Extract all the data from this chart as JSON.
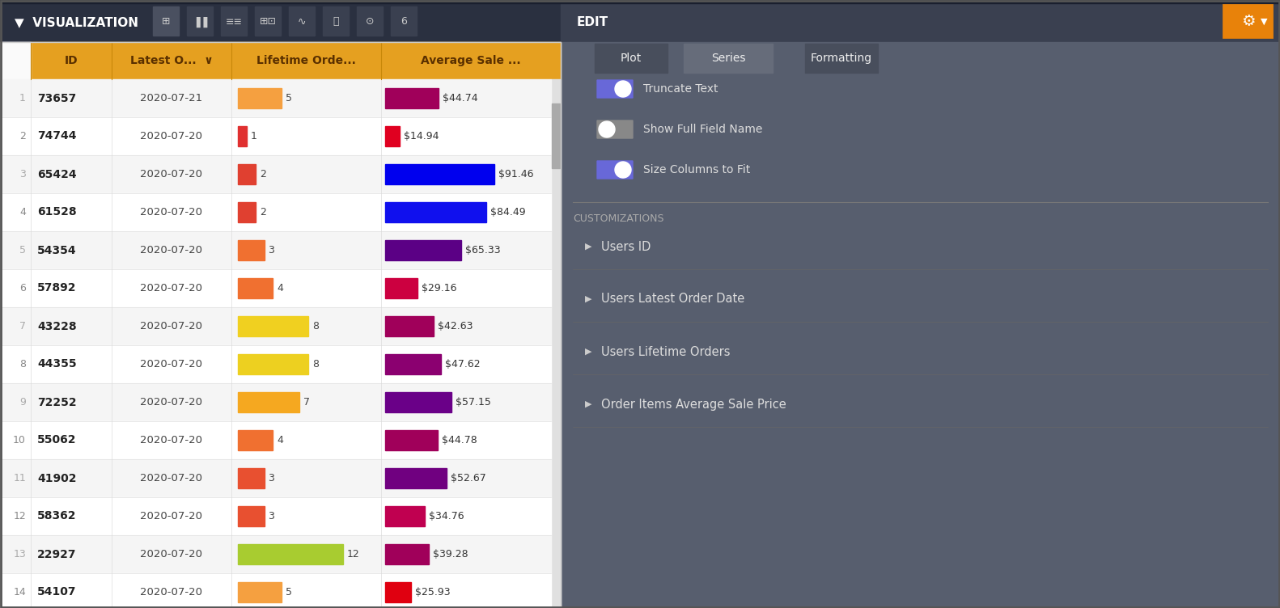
{
  "rows": [
    {
      "num": 1,
      "id": "73657",
      "date": "2020-07-21",
      "lifetime": 5,
      "lifetime_bar_color": "#F5A040",
      "avg_sale": 44.74,
      "avg_bar_color": "#A0005A",
      "avg_bar_width": 0.45
    },
    {
      "num": 2,
      "id": "74744",
      "date": "2020-07-20",
      "lifetime": 1,
      "lifetime_bar_color": "#E03030",
      "avg_sale": 14.94,
      "avg_bar_color": "#E00020",
      "avg_bar_width": 0.12
    },
    {
      "num": 3,
      "id": "65424",
      "date": "2020-07-20",
      "lifetime": 2,
      "lifetime_bar_color": "#E04030",
      "avg_sale": 91.46,
      "avg_bar_color": "#0000EE",
      "avg_bar_width": 0.92
    },
    {
      "num": 4,
      "id": "61528",
      "date": "2020-07-20",
      "lifetime": 2,
      "lifetime_bar_color": "#E04030",
      "avg_sale": 84.49,
      "avg_bar_color": "#1010EE",
      "avg_bar_width": 0.85
    },
    {
      "num": 5,
      "id": "54354",
      "date": "2020-07-20",
      "lifetime": 3,
      "lifetime_bar_color": "#F07030",
      "avg_sale": 65.33,
      "avg_bar_color": "#5B0085",
      "avg_bar_width": 0.64
    },
    {
      "num": 6,
      "id": "57892",
      "date": "2020-07-20",
      "lifetime": 4,
      "lifetime_bar_color": "#F07030",
      "avg_sale": 29.16,
      "avg_bar_color": "#CC0040",
      "avg_bar_width": 0.27
    },
    {
      "num": 7,
      "id": "43228",
      "date": "2020-07-20",
      "lifetime": 8,
      "lifetime_bar_color": "#F0D020",
      "avg_sale": 42.63,
      "avg_bar_color": "#A0005A",
      "avg_bar_width": 0.41
    },
    {
      "num": 8,
      "id": "44355",
      "date": "2020-07-20",
      "lifetime": 8,
      "lifetime_bar_color": "#EDD020",
      "avg_sale": 47.62,
      "avg_bar_color": "#8B0070",
      "avg_bar_width": 0.47
    },
    {
      "num": 9,
      "id": "72252",
      "date": "2020-07-20",
      "lifetime": 7,
      "lifetime_bar_color": "#F5A820",
      "avg_sale": 57.15,
      "avg_bar_color": "#6A0088",
      "avg_bar_width": 0.56
    },
    {
      "num": 10,
      "id": "55062",
      "date": "2020-07-20",
      "lifetime": 4,
      "lifetime_bar_color": "#F07030",
      "avg_sale": 44.78,
      "avg_bar_color": "#A0005A",
      "avg_bar_width": 0.44
    },
    {
      "num": 11,
      "id": "41902",
      "date": "2020-07-20",
      "lifetime": 3,
      "lifetime_bar_color": "#E85030",
      "avg_sale": 52.67,
      "avg_bar_color": "#700080",
      "avg_bar_width": 0.52
    },
    {
      "num": 12,
      "id": "58362",
      "date": "2020-07-20",
      "lifetime": 3,
      "lifetime_bar_color": "#E85030",
      "avg_sale": 34.76,
      "avg_bar_color": "#C00050",
      "avg_bar_width": 0.33
    },
    {
      "num": 13,
      "id": "22927",
      "date": "2020-07-20",
      "lifetime": 12,
      "lifetime_bar_color": "#A8CC30",
      "avg_sale": 39.28,
      "avg_bar_color": "#A0005A",
      "avg_bar_width": 0.37
    },
    {
      "num": 14,
      "id": "54107",
      "date": "2020-07-20",
      "lifetime": 5,
      "lifetime_bar_color": "#F5A040",
      "avg_sale": 25.93,
      "avg_bar_color": "#E00010",
      "avg_bar_width": 0.22
    }
  ],
  "header_bg": "#E5A020",
  "header_text": "#5A3000",
  "row_bg_odd": "#F5F5F5",
  "row_bg_even": "#FFFFFF",
  "top_bar_bg": "#2D3748",
  "right_panel_bg": "#555B6A",
  "table_bg": "#FFFFFF",
  "border_color": "#CCCCCC",
  "num_color_dark": "#888888",
  "num_color_light": "#AAAAAA",
  "id_color": "#222222",
  "date_color": "#444444",
  "panel_title_color": "#FFFFFF",
  "panel_text_color": "#DDDDDD",
  "active_tab_bg": "#666C7A",
  "inactive_tab_bg": "#484E5C",
  "tab_text_color": "#EEEEEE",
  "toggle_on_color": "#7070E0",
  "toggle_off_color": "#AAAAAA",
  "orange_accent": "#E8820A",
  "customization_title_color": "#BBBBBB",
  "customization_item_color": "#DDDDDD"
}
